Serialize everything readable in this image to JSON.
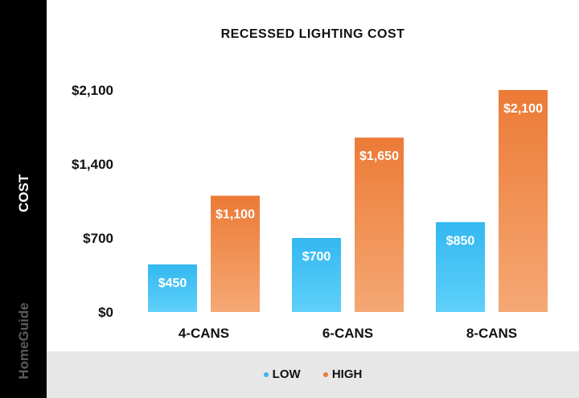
{
  "chart_data": {
    "type": "bar",
    "title": "RECESSED LIGHTING COST",
    "ylabel": "COST",
    "xlabel": "",
    "categories": [
      "4-CANS",
      "6-CANS",
      "8-CANS"
    ],
    "series": [
      {
        "name": "LOW",
        "values": [
          450,
          700,
          850
        ],
        "value_labels": [
          "$450",
          "$700",
          "$850"
        ],
        "color": "#33b8f0",
        "color_light": "#5ed0fa"
      },
      {
        "name": "HIGH",
        "values": [
          1100,
          1650,
          2100
        ],
        "value_labels": [
          "$1,100",
          "$1,650",
          "$2,100"
        ],
        "color": "#ec7a36",
        "color_light": "#f5a874"
      }
    ],
    "yticks": [
      0,
      700,
      1400,
      2100
    ],
    "ytick_labels": [
      "$0",
      "$700",
      "$1,400",
      "$2,100"
    ],
    "ylim": [
      0,
      2100
    ],
    "grid": false,
    "legend_position": "bottom"
  },
  "brand": "HomeGuide"
}
